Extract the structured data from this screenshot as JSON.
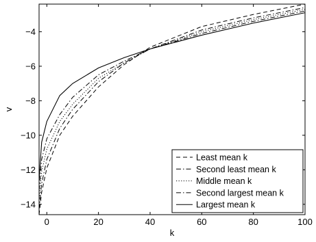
{
  "chart_data": {
    "type": "line",
    "title": "",
    "xlabel": "k",
    "ylabel": "v",
    "xlim": [
      -3,
      100
    ],
    "ylim": [
      -14.6,
      -2.4
    ],
    "xticks": [
      0,
      20,
      40,
      60,
      80,
      100
    ],
    "yticks": [
      -14,
      -12,
      -10,
      -8,
      -6,
      -4
    ],
    "grid": false,
    "legend_position": "bottom-right",
    "series": [
      {
        "name": "Least mean k",
        "style": "dashed",
        "x": [
          -3,
          -2,
          0,
          5,
          10,
          20,
          30,
          40,
          60,
          80,
          100
        ],
        "y": [
          -14.6,
          -13.3,
          -11.9,
          -10.0,
          -8.9,
          -7.2,
          -5.9,
          -4.9,
          -3.7,
          -3.0,
          -2.4
        ]
      },
      {
        "name": "Second least mean k",
        "style": "dashdot",
        "x": [
          -3,
          -2,
          0,
          5,
          10,
          20,
          30,
          40,
          60,
          80,
          100
        ],
        "y": [
          -14.3,
          -12.8,
          -11.4,
          -9.6,
          -8.5,
          -6.9,
          -5.8,
          -5.0,
          -3.9,
          -3.2,
          -2.6
        ]
      },
      {
        "name": "Middle mean k",
        "style": "dotted",
        "x": [
          -3,
          -2,
          0,
          5,
          10,
          20,
          30,
          40,
          60,
          80,
          100
        ],
        "y": [
          -13.8,
          -12.1,
          -10.8,
          -9.2,
          -8.2,
          -6.7,
          -5.8,
          -5.0,
          -4.0,
          -3.3,
          -2.7
        ]
      },
      {
        "name": "Second largest mean k",
        "style": "dashdot",
        "x": [
          -3,
          -2,
          0,
          5,
          10,
          20,
          30,
          40,
          60,
          80,
          100
        ],
        "y": [
          -13.2,
          -11.4,
          -10.2,
          -8.8,
          -7.8,
          -6.5,
          -5.7,
          -5.0,
          -4.1,
          -3.4,
          -2.8
        ]
      },
      {
        "name": "Largest mean k",
        "style": "solid",
        "x": [
          -3,
          -2,
          0,
          5,
          10,
          20,
          30,
          40,
          60,
          80,
          100
        ],
        "y": [
          -12.6,
          -10.4,
          -9.2,
          -7.7,
          -7.0,
          -6.1,
          -5.5,
          -5.0,
          -4.2,
          -3.5,
          -2.9
        ]
      }
    ]
  }
}
